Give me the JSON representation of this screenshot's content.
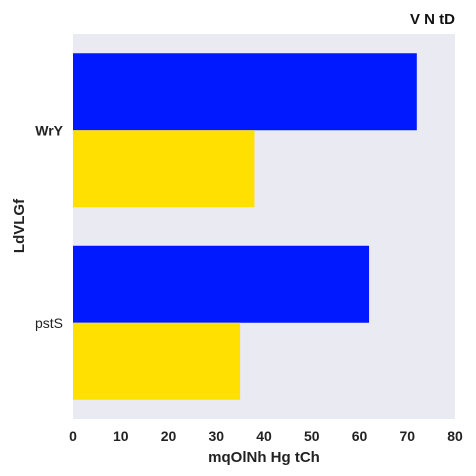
{
  "chart_data": {
    "type": "bar",
    "orientation": "horizontal",
    "title": "V N tD",
    "title_position": "top-right",
    "xlabel": "mqOlNh Hg tCh",
    "ylabel": "LdVLGf",
    "categories": [
      "WrY",
      "pstS"
    ],
    "category_label_bold": [
      true,
      false
    ],
    "series": [
      {
        "values": [
          72,
          62
        ],
        "color": "#0019ff"
      },
      {
        "values": [
          38,
          35
        ],
        "color": "#ffe000"
      }
    ],
    "xlim": [
      0,
      80
    ],
    "xticks": [
      "0",
      "10",
      "20",
      "30",
      "40",
      "50",
      "60",
      "70",
      "80"
    ],
    "plot_background": "#eaeaf2",
    "grid": false,
    "legend": "none"
  }
}
